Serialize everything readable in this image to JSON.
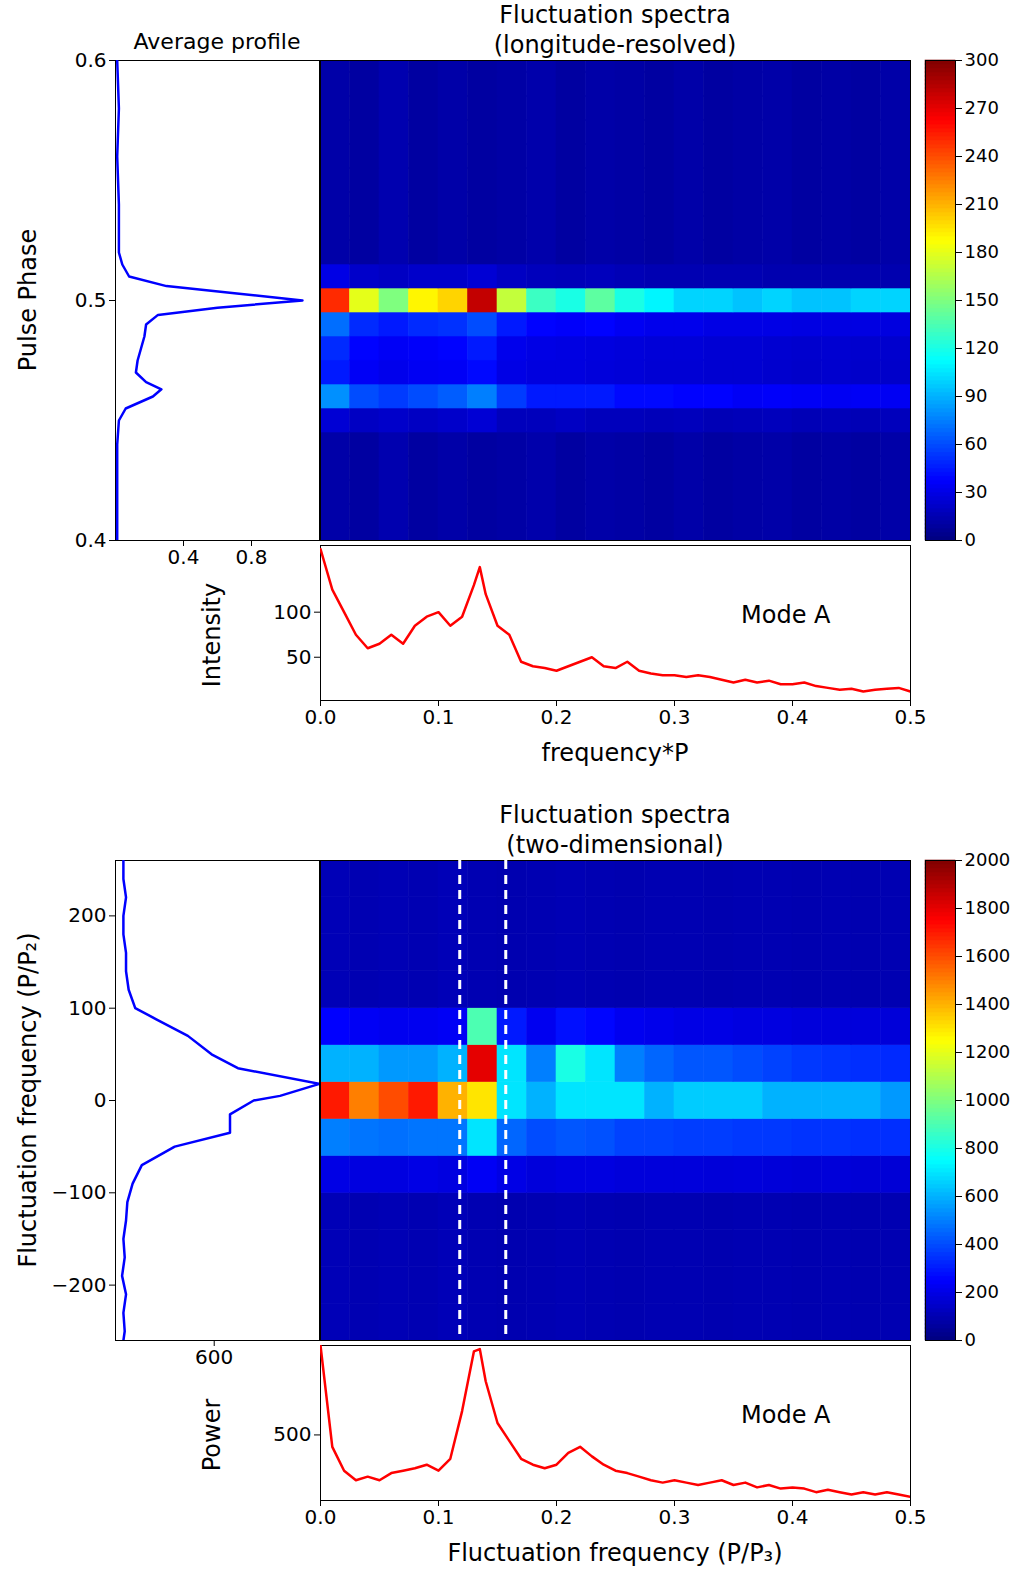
{
  "chart_data": [
    {
      "type": "line",
      "title": "Average profile",
      "orientation": "horizontal",
      "y": [
        0.4,
        0.42,
        0.44,
        0.45,
        0.455,
        0.46,
        0.463,
        0.466,
        0.47,
        0.475,
        0.48,
        0.485,
        0.49,
        0.494,
        0.497,
        0.5,
        0.503,
        0.506,
        0.51,
        0.515,
        0.52,
        0.54,
        0.56,
        0.58,
        0.6
      ],
      "values": [
        0.01,
        0.01,
        0.01,
        0.02,
        0.06,
        0.22,
        0.27,
        0.18,
        0.12,
        0.13,
        0.15,
        0.17,
        0.18,
        0.25,
        0.6,
        1.1,
        0.7,
        0.3,
        0.08,
        0.04,
        0.02,
        0.02,
        0.01,
        0.02,
        0.01
      ],
      "color": "#0000ff",
      "xlim": [
        0,
        1.2
      ],
      "xticks": [
        0.4,
        0.8
      ],
      "ylim": [
        0.4,
        0.6
      ],
      "yticks": [
        0.4,
        0.5,
        0.6
      ],
      "ylabel": "Pulse Phase"
    },
    {
      "type": "heatmap",
      "title": "Fluctuation spectra\n(longitude-resolved)",
      "x": [
        0.0125,
        0.0375,
        0.0625,
        0.0875,
        0.1125,
        0.1375,
        0.1625,
        0.1875,
        0.2125,
        0.2375,
        0.2625,
        0.2875,
        0.3125,
        0.3375,
        0.3625,
        0.3875,
        0.4125,
        0.4375,
        0.4625,
        0.4875
      ],
      "y": [
        0.4,
        0.41,
        0.42,
        0.43,
        0.44,
        0.45,
        0.46,
        0.47,
        0.48,
        0.49,
        0.5,
        0.51,
        0.52,
        0.53,
        0.54,
        0.55,
        0.56,
        0.57,
        0.58,
        0.59,
        0.6
      ],
      "cells": [
        [
          12,
          10,
          14,
          10,
          12,
          10,
          11,
          13,
          10,
          12,
          11,
          10,
          12,
          10,
          11,
          12,
          10,
          11,
          10,
          12
        ],
        [
          12,
          10,
          14,
          10,
          12,
          10,
          11,
          13,
          10,
          12,
          11,
          10,
          12,
          10,
          11,
          12,
          10,
          11,
          10,
          12
        ],
        [
          12,
          10,
          14,
          10,
          12,
          10,
          11,
          13,
          10,
          12,
          11,
          10,
          12,
          10,
          11,
          12,
          10,
          11,
          10,
          12
        ],
        [
          12,
          10,
          14,
          10,
          12,
          10,
          11,
          13,
          10,
          12,
          11,
          10,
          12,
          10,
          11,
          12,
          10,
          11,
          10,
          12
        ],
        [
          12,
          10,
          14,
          10,
          12,
          10,
          11,
          13,
          10,
          12,
          11,
          10,
          12,
          10,
          11,
          12,
          10,
          11,
          10,
          12
        ],
        [
          25,
          20,
          22,
          20,
          22,
          25,
          18,
          18,
          20,
          18,
          18,
          17,
          18,
          16,
          17,
          18,
          16,
          17,
          16,
          18
        ],
        [
          80,
          60,
          55,
          60,
          65,
          75,
          55,
          45,
          45,
          45,
          40,
          40,
          38,
          38,
          35,
          36,
          35,
          34,
          35,
          34
        ],
        [
          45,
          35,
          32,
          34,
          35,
          40,
          30,
          28,
          28,
          27,
          26,
          25,
          25,
          24,
          24,
          23,
          22,
          23,
          22,
          22
        ],
        [
          50,
          38,
          35,
          36,
          38,
          45,
          32,
          30,
          29,
          28,
          27,
          26,
          26,
          25,
          25,
          24,
          23,
          24,
          23,
          23
        ],
        [
          70,
          50,
          45,
          50,
          52,
          60,
          45,
          38,
          36,
          38,
          34,
          32,
          32,
          30,
          30,
          30,
          29,
          29,
          29,
          28
        ],
        [
          250,
          180,
          150,
          190,
          200,
          280,
          170,
          130,
          120,
          140,
          120,
          110,
          100,
          100,
          95,
          100,
          95,
          95,
          100,
          100
        ],
        [
          30,
          22,
          20,
          22,
          22,
          25,
          20,
          18,
          17,
          18,
          16,
          15,
          15,
          15,
          15,
          14,
          14,
          14,
          14,
          14
        ],
        [
          12,
          10,
          14,
          10,
          12,
          10,
          11,
          13,
          10,
          12,
          11,
          10,
          12,
          10,
          11,
          12,
          10,
          11,
          10,
          12
        ],
        [
          12,
          10,
          14,
          10,
          12,
          10,
          11,
          13,
          10,
          12,
          11,
          10,
          12,
          10,
          11,
          12,
          10,
          11,
          10,
          12
        ],
        [
          12,
          10,
          14,
          10,
          12,
          10,
          11,
          13,
          10,
          12,
          11,
          10,
          12,
          10,
          11,
          12,
          10,
          11,
          10,
          12
        ],
        [
          12,
          10,
          14,
          10,
          12,
          10,
          11,
          13,
          10,
          12,
          11,
          10,
          12,
          10,
          11,
          12,
          10,
          11,
          10,
          12
        ],
        [
          12,
          10,
          14,
          10,
          12,
          10,
          11,
          13,
          10,
          12,
          11,
          10,
          12,
          10,
          11,
          12,
          10,
          11,
          10,
          12
        ],
        [
          12,
          10,
          14,
          10,
          12,
          10,
          11,
          13,
          10,
          12,
          11,
          10,
          12,
          10,
          11,
          12,
          10,
          11,
          10,
          12
        ],
        [
          12,
          10,
          14,
          10,
          12,
          10,
          11,
          13,
          10,
          12,
          11,
          10,
          12,
          10,
          11,
          12,
          10,
          11,
          10,
          12
        ],
        [
          12,
          10,
          14,
          10,
          12,
          10,
          11,
          13,
          10,
          12,
          11,
          10,
          12,
          10,
          11,
          12,
          10,
          11,
          10,
          12
        ],
        [
          12,
          10,
          14,
          10,
          12,
          10,
          11,
          13,
          10,
          12,
          11,
          10,
          12,
          10,
          11,
          12,
          10,
          11,
          10,
          12
        ]
      ],
      "xlim": [
        0,
        0.5
      ],
      "ylim": [
        0.4,
        0.6
      ],
      "tick_labels": false,
      "colorbar_lim": [
        0,
        300
      ],
      "colorbar_ticks": [
        0,
        30,
        60,
        90,
        120,
        150,
        180,
        210,
        240,
        270,
        300
      ]
    },
    {
      "type": "line",
      "x": [
        0,
        0.01,
        0.02,
        0.03,
        0.04,
        0.05,
        0.06,
        0.07,
        0.08,
        0.09,
        0.1,
        0.11,
        0.12,
        0.13,
        0.135,
        0.14,
        0.15,
        0.16,
        0.17,
        0.18,
        0.19,
        0.2,
        0.21,
        0.22,
        0.23,
        0.24,
        0.25,
        0.26,
        0.27,
        0.28,
        0.29,
        0.3,
        0.31,
        0.32,
        0.33,
        0.34,
        0.35,
        0.36,
        0.37,
        0.38,
        0.39,
        0.4,
        0.41,
        0.42,
        0.43,
        0.44,
        0.45,
        0.46,
        0.47,
        0.48,
        0.49,
        0.5
      ],
      "values": [
        170,
        125,
        100,
        75,
        60,
        65,
        75,
        65,
        85,
        95,
        100,
        85,
        95,
        130,
        150,
        120,
        85,
        75,
        45,
        40,
        38,
        35,
        40,
        45,
        50,
        40,
        38,
        45,
        35,
        32,
        30,
        30,
        28,
        30,
        28,
        25,
        22,
        25,
        22,
        24,
        20,
        20,
        22,
        18,
        16,
        14,
        15,
        12,
        14,
        15,
        16,
        12
      ],
      "color": "#ff0000",
      "xlim": [
        0,
        0.5
      ],
      "xticks": [
        {
          "value": 0,
          "label": "0.0"
        },
        0.1,
        0.2,
        0.3,
        0.4,
        0.5
      ],
      "ylim": [
        2,
        174
      ],
      "yticks": [
        50,
        100
      ],
      "xlabel": "frequency*P",
      "ylabel": "Intensity",
      "annotations": [
        "Mode A"
      ]
    },
    {
      "type": "line",
      "orientation": "horizontal",
      "y": [
        260,
        240,
        220,
        200,
        180,
        160,
        140,
        120,
        100,
        88,
        70,
        50,
        35,
        18,
        5,
        0,
        -15,
        -35,
        -50,
        -70,
        -90,
        -110,
        -130,
        -150,
        -170,
        -190,
        -210,
        -230,
        -250,
        -260
      ],
      "values": [
        531,
        531,
        533,
        531,
        531,
        533,
        533,
        535,
        540,
        556,
        580,
        598,
        618,
        680,
        650,
        630,
        612,
        612,
        570,
        545,
        538,
        534,
        533,
        531,
        532,
        530,
        533,
        531,
        532,
        531
      ],
      "color": "#0000ff",
      "xlim": [
        525,
        680
      ],
      "xticks": [
        600
      ],
      "ylim": [
        -260,
        260
      ],
      "yticks": [
        -200,
        -100,
        0,
        100,
        200
      ],
      "ylabel": "Fluctuation frequency (P/P₂)"
    },
    {
      "type": "heatmap",
      "title": "Fluctuation spectra\n(two-dimensional)",
      "x": [
        0.0125,
        0.0375,
        0.0625,
        0.0875,
        0.1125,
        0.1375,
        0.1625,
        0.1875,
        0.2125,
        0.2375,
        0.2625,
        0.2875,
        0.3125,
        0.3375,
        0.3625,
        0.3875,
        0.4125,
        0.4375,
        0.4625,
        0.4875
      ],
      "y": [
        -240,
        -200,
        -160,
        -120,
        -80,
        -40,
        0,
        40,
        80,
        120,
        160,
        200,
        240
      ],
      "cells": [
        [
          110,
          100,
          105,
          100,
          110,
          100,
          95,
          100,
          105,
          100,
          95,
          100,
          100,
          95,
          100,
          100,
          95,
          100,
          95,
          100
        ],
        [
          110,
          100,
          105,
          100,
          110,
          100,
          95,
          100,
          105,
          100,
          95,
          100,
          100,
          95,
          100,
          100,
          95,
          100,
          95,
          100
        ],
        [
          110,
          100,
          105,
          100,
          110,
          100,
          95,
          100,
          105,
          100,
          95,
          100,
          100,
          95,
          100,
          100,
          95,
          100,
          95,
          100
        ],
        [
          110,
          100,
          105,
          100,
          110,
          100,
          95,
          100,
          105,
          100,
          95,
          100,
          100,
          95,
          100,
          100,
          95,
          100,
          95,
          100
        ],
        [
          200,
          190,
          190,
          200,
          190,
          230,
          200,
          180,
          190,
          190,
          180,
          180,
          180,
          175,
          180,
          175,
          170,
          175,
          170,
          170
        ],
        [
          500,
          480,
          470,
          480,
          480,
          700,
          450,
          400,
          420,
          410,
          380,
          380,
          370,
          370,
          360,
          360,
          350,
          350,
          340,
          340
        ],
        [
          1700,
          1500,
          1600,
          1700,
          1400,
          1300,
          700,
          600,
          700,
          700,
          700,
          600,
          650,
          650,
          650,
          600,
          600,
          600,
          600,
          550
        ],
        [
          600,
          600,
          550,
          550,
          600,
          1800,
          700,
          500,
          800,
          700,
          500,
          450,
          420,
          420,
          400,
          380,
          360,
          350,
          340,
          330
        ],
        [
          250,
          230,
          220,
          220,
          230,
          900,
          300,
          220,
          280,
          260,
          220,
          210,
          200,
          200,
          190,
          190,
          180,
          180,
          180,
          175
        ],
        [
          110,
          100,
          105,
          100,
          110,
          100,
          95,
          100,
          105,
          100,
          95,
          100,
          100,
          95,
          100,
          100,
          95,
          100,
          95,
          100
        ],
        [
          110,
          100,
          105,
          100,
          110,
          100,
          95,
          100,
          105,
          100,
          95,
          100,
          100,
          95,
          100,
          100,
          95,
          100,
          95,
          100
        ],
        [
          110,
          100,
          105,
          100,
          110,
          100,
          95,
          100,
          105,
          100,
          95,
          100,
          100,
          95,
          100,
          100,
          95,
          100,
          95,
          100
        ],
        [
          110,
          100,
          105,
          100,
          110,
          100,
          95,
          100,
          105,
          100,
          95,
          100,
          100,
          95,
          100,
          100,
          95,
          100,
          95,
          100
        ]
      ],
      "xlim": [
        0,
        0.5
      ],
      "ylim": [
        -260,
        260
      ],
      "tick_labels": false,
      "vlines": [
        0.118,
        0.157
      ],
      "colorbar_lim": [
        0,
        2000
      ],
      "colorbar_ticks": [
        0,
        200,
        400,
        600,
        800,
        1000,
        1200,
        1400,
        1600,
        1800,
        2000
      ]
    },
    {
      "type": "line",
      "x": [
        0,
        0.01,
        0.02,
        0.03,
        0.04,
        0.05,
        0.06,
        0.07,
        0.08,
        0.09,
        0.1,
        0.11,
        0.12,
        0.13,
        0.135,
        0.14,
        0.15,
        0.16,
        0.17,
        0.18,
        0.19,
        0.2,
        0.21,
        0.22,
        0.23,
        0.24,
        0.25,
        0.26,
        0.27,
        0.28,
        0.29,
        0.3,
        0.31,
        0.32,
        0.33,
        0.34,
        0.35,
        0.36,
        0.37,
        0.38,
        0.39,
        0.4,
        0.41,
        0.42,
        0.43,
        0.44,
        0.45,
        0.46,
        0.47,
        0.48,
        0.49,
        0.5
      ],
      "values": [
        575,
        490,
        470,
        462,
        465,
        462,
        468,
        470,
        472,
        475,
        470,
        480,
        520,
        570,
        572,
        545,
        510,
        495,
        480,
        475,
        472,
        475,
        485,
        490,
        482,
        475,
        470,
        468,
        465,
        462,
        460,
        462,
        460,
        458,
        460,
        462,
        458,
        460,
        456,
        458,
        455,
        456,
        455,
        452,
        454,
        452,
        450,
        452,
        450,
        452,
        450,
        448
      ],
      "color": "#ff0000",
      "xlim": [
        0,
        0.5
      ],
      "xticks": [
        {
          "value": 0,
          "label": "0.0"
        },
        0.1,
        0.2,
        0.3,
        0.4,
        0.5
      ],
      "ylim": [
        445,
        575
      ],
      "yticks": [
        500
      ],
      "xlabel": "Fluctuation frequency (P/P₃)",
      "ylabel": "Power",
      "annotations": [
        "Mode A"
      ]
    }
  ]
}
